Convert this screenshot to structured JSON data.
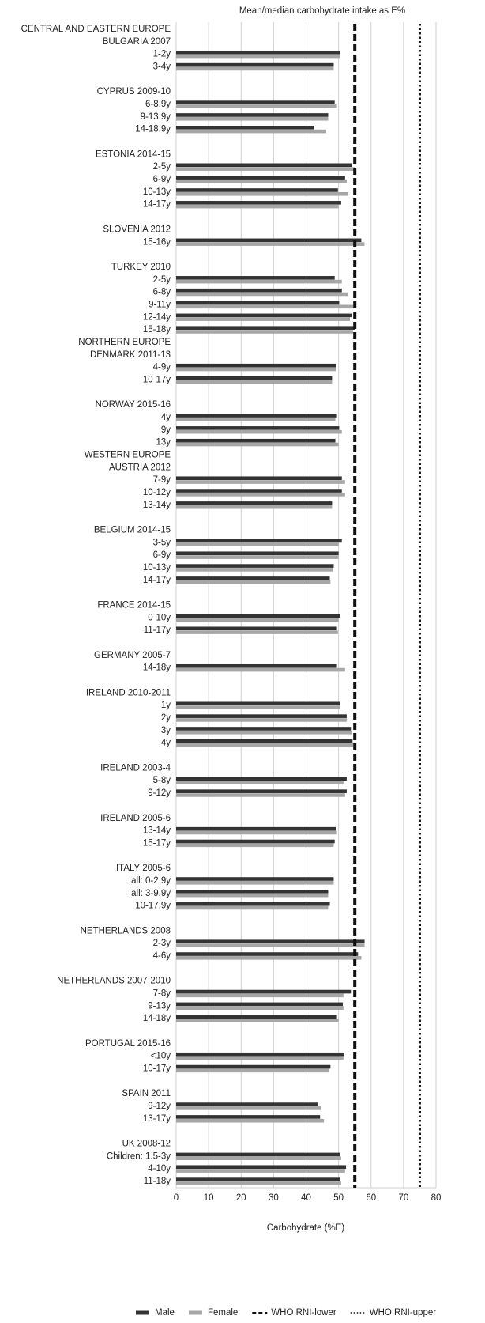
{
  "chart_data": {
    "type": "hbar",
    "title": "Mean/median carbohydrate intake as E%",
    "xlabel": "Carbohydrate (%E)",
    "xlim": [
      0,
      80
    ],
    "xticks": [
      0,
      10,
      20,
      30,
      40,
      50,
      60,
      70,
      80
    ],
    "grid": true,
    "legend": "bottom",
    "categories": [
      "CENTRAL AND EASTERN EUROPE",
      "BULGARIA 2007",
      "1-2y",
      "3-4y",
      null,
      "CYPRUS 2009-10",
      "6-8.9y",
      "9-13.9y",
      "14-18.9y",
      null,
      "ESTONIA 2014-15",
      "2-5y",
      "6-9y",
      "10-13y",
      "14-17y",
      null,
      "SLOVENIA 2012",
      "15-16y",
      null,
      "TURKEY 2010",
      "2-5y",
      "6-8y",
      "9-11y",
      "12-14y",
      "15-18y",
      "NORTHERN EUROPE",
      "DENMARK 2011-13",
      "4-9y",
      "10-17y",
      null,
      "NORWAY 2015-16",
      "4y",
      "9y",
      "13y",
      "WESTERN EUROPE",
      "AUSTRIA 2012",
      "7-9y",
      "10-12y",
      "13-14y",
      null,
      "BELGIUM 2014-15",
      "3-5y",
      "6-9y",
      "10-13y",
      "14-17y",
      null,
      "FRANCE 2014-15",
      "0-10y",
      "11-17y",
      null,
      "GERMANY 2005-7",
      "14-18y",
      null,
      "IRELAND 2010-2011",
      "1y",
      "2y",
      "3y",
      "4y",
      null,
      "IRELAND 2003-4",
      "5-8y",
      "9-12y",
      null,
      "IRELAND 2005-6",
      "13-14y",
      "15-17y",
      null,
      "ITALY 2005-6",
      "all: 0-2.9y",
      "all: 3-9.9y",
      "10-17.9y",
      null,
      "NETHERLANDS 2008",
      "2-3y",
      "4-6y",
      null,
      "NETHERLANDS 2007-2010",
      "7-8y",
      "9-13y",
      "14-18y",
      null,
      "PORTUGAL 2015-16",
      "<10y",
      "10-17y",
      null,
      "SPAIN 2011",
      "9-12y",
      "13-17y",
      null,
      "UK 2008-12",
      "Children: 1.5-3y",
      "4-10y",
      "11-18y"
    ],
    "series": [
      {
        "name": "Male",
        "color": "#333333",
        "values": [
          null,
          null,
          50.5,
          48.5,
          null,
          null,
          48.8,
          46.8,
          42.5,
          null,
          null,
          54,
          52,
          49.8,
          50.8,
          null,
          null,
          57,
          null,
          null,
          48.8,
          51,
          50.2,
          54,
          55,
          null,
          null,
          49.2,
          48,
          null,
          null,
          49.5,
          50.2,
          49,
          null,
          null,
          51,
          51,
          48,
          null,
          null,
          51,
          50,
          48.5,
          47.3,
          null,
          null,
          50.5,
          49.5,
          null,
          null,
          49.5,
          null,
          null,
          50.5,
          52.5,
          53.8,
          54.3,
          null,
          null,
          52.5,
          52.5,
          null,
          null,
          49.2,
          48.8,
          null,
          null,
          48.5,
          46.8,
          47.3,
          null,
          null,
          58,
          56,
          null,
          null,
          53.8,
          51.3,
          49.5,
          null,
          null,
          51.8,
          47.5,
          null,
          null,
          43.7,
          44.3,
          null,
          null,
          50.5,
          52.3,
          50.5
        ]
      },
      {
        "name": "Female",
        "color": "#a6a6a6",
        "values": [
          null,
          null,
          50.5,
          48.5,
          null,
          null,
          49.5,
          46.8,
          46.2,
          null,
          null,
          55,
          52.5,
          53,
          50,
          null,
          null,
          58,
          null,
          null,
          51,
          53,
          54.5,
          53.5,
          54.5,
          null,
          null,
          49.2,
          48,
          null,
          null,
          49,
          51,
          50,
          null,
          null,
          52,
          52,
          48,
          null,
          null,
          50,
          50,
          48.2,
          47.5,
          null,
          null,
          50,
          49.8,
          null,
          null,
          52,
          null,
          null,
          50.5,
          52.5,
          54,
          54.5,
          null,
          null,
          51.5,
          52,
          null,
          null,
          49.5,
          48.5,
          null,
          null,
          48.5,
          46.8,
          46.8,
          null,
          null,
          58,
          57,
          null,
          null,
          51.5,
          51.5,
          50,
          null,
          null,
          51.5,
          47,
          null,
          null,
          44.5,
          45.5,
          null,
          null,
          50.8,
          52,
          50.8
        ]
      }
    ],
    "reference_lines": [
      {
        "name": "WHO RNI-lower",
        "value": 55,
        "color": "#111111",
        "style": "dashed"
      },
      {
        "name": "WHO RNI-upper",
        "value": 75,
        "color": "#111111",
        "style": "dotted"
      }
    ]
  }
}
